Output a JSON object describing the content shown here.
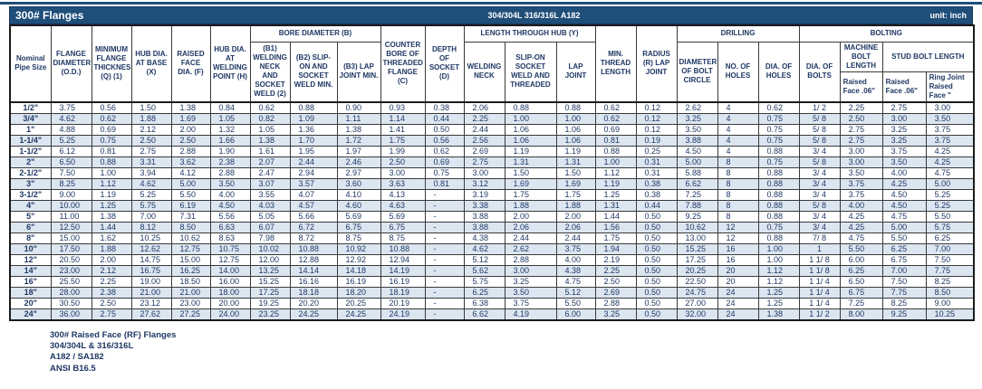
{
  "title_bar": {
    "title": "300# Flanges",
    "material": "304/304L 316/316L A182",
    "unit": "unit: inch"
  },
  "colors": {
    "bar_navy": "#1f4e79",
    "text_navy": "#1f3864",
    "row_shade_blue": "#dce6f1",
    "background": "#ffffff"
  },
  "table": {
    "header": {
      "nominal": "Nominal Pipe Size",
      "flange_diameter": "FLANGE DIAMETER (O.D.)",
      "min_thickness": "MINIMUM FLANGE THICKNESS (Q) (1)",
      "hub_base": "HUB DIA. AT BASE (X)",
      "raised_face": "RAISED FACE DIA. (F)",
      "hub_welding": "HUB DIA. AT WELDING POINT (H)",
      "bore_group": "BORE DIAMETER (B)",
      "b1": "(B1) WELDING NECK AND SOCKET WELD (2)",
      "b2": "(B2) SLIP-ON AND SOCKET WELD MIN.",
      "b3": "(B3) LAP JOINT MIN.",
      "counter_bore": "COUNTER BORE OF THREADED FLANGE (C)",
      "depth_socket": "DEPTH OF SOCKET (D)",
      "length_group": "LENGTH THROUGH HUB (Y)",
      "welding_neck": "WELDING NECK",
      "slip_on": "SLIP-ON SOCKET WELD AND THREADED",
      "lap_joint": "LAP JOINT",
      "min_thread": "MIN. THREAD LENGTH",
      "radius": "RADIUS (R) LAP JOINT",
      "drilling_group": "DRILLING",
      "bolt_circle": "DIAMETER OF BOLT CIRCLE",
      "no_holes": "NO. OF HOLES",
      "dia_holes": "DIA. OF HOLES",
      "bolting_group": "BOLTING",
      "dia_bolts": "DIA. OF BOLTS",
      "machine_bolt": "MACHINE BOLT LENGTH",
      "stud_bolt": "STUD BOLT LENGTH",
      "machine_raised": "Raised Face .06\"",
      "stud_raised": "Raised Face .06\"",
      "ring_joint": "Ring Joint Raised Face \""
    },
    "rows": [
      {
        "size": "1/2\"",
        "values": [
          "3.75",
          "0.56",
          "1.50",
          "1.38",
          "0.84",
          "0.62",
          "0.88",
          "0.90",
          "0.93",
          "0.38",
          "2.06",
          "0.88",
          "0.88",
          "0.62",
          "0.12",
          "2.62",
          "4",
          "0.62",
          "1/ 2",
          "2.25",
          "2.75",
          "3.00"
        ]
      },
      {
        "size": "3/4\"",
        "values": [
          "4.62",
          "0.62",
          "1.88",
          "1.69",
          "1.05",
          "0.82",
          "1.09",
          "1.11",
          "1.14",
          "0.44",
          "2.25",
          "1.00",
          "1.00",
          "0.62",
          "0.12",
          "3.25",
          "4",
          "0.75",
          "5/ 8",
          "2.50",
          "3.00",
          "3.50"
        ]
      },
      {
        "size": "1\"",
        "values": [
          "4.88",
          "0.69",
          "2.12",
          "2.00",
          "1.32",
          "1.05",
          "1.36",
          "1.38",
          "1.41",
          "0.50",
          "2.44",
          "1.06",
          "1.06",
          "0.69",
          "0.12",
          "3.50",
          "4",
          "0.75",
          "5/ 8",
          "2.75",
          "3.25",
          "3.75"
        ]
      },
      {
        "size": "1-1/4\"",
        "values": [
          "5.25",
          "0.75",
          "2.50",
          "2.50",
          "1.66",
          "1.38",
          "1.70",
          "1.72",
          "1.75",
          "0.56",
          "2.56",
          "1.06",
          "1.06",
          "0.81",
          "0.19",
          "3.88",
          "4",
          "0.75",
          "5/ 8",
          "2.75",
          "3.25",
          "3.75"
        ]
      },
      {
        "size": "1-1/2\"",
        "values": [
          "6.12",
          "0.81",
          "2.75",
          "2.88",
          "1.90",
          "1.61",
          "1.95",
          "1.97",
          "1.99",
          "0.62",
          "2.69",
          "1.19",
          "1.19",
          "0.88",
          "0.25",
          "4.50",
          "4",
          "0.88",
          "3/ 4",
          "3.00",
          "3.75",
          "4.25"
        ]
      },
      {
        "size": "2\"",
        "values": [
          "6.50",
          "0.88",
          "3.31",
          "3.62",
          "2.38",
          "2.07",
          "2.44",
          "2.46",
          "2.50",
          "0.69",
          "2.75",
          "1.31",
          "1.31",
          "1.00",
          "0.31",
          "5.00",
          "8",
          "0.75",
          "5/ 8",
          "3.00",
          "3.50",
          "4.25"
        ]
      },
      {
        "size": "2-1/2\"",
        "values": [
          "7.50",
          "1.00",
          "3.94",
          "4.12",
          "2.88",
          "2.47",
          "2.94",
          "2.97",
          "3.00",
          "0.75",
          "3.00",
          "1.50",
          "1.50",
          "1.12",
          "0.31",
          "5.88",
          "8",
          "0.88",
          "3/ 4",
          "3.50",
          "4.00",
          "4.75"
        ]
      },
      {
        "size": "3\"",
        "values": [
          "8.25",
          "1.12",
          "4.62",
          "5.00",
          "3.50",
          "3.07",
          "3.57",
          "3.60",
          "3.63",
          "0.81",
          "3.12",
          "1.69",
          "1.69",
          "1.19",
          "0.38",
          "6.62",
          "8",
          "0.88",
          "3/ 4",
          "3.75",
          "4.25",
          "5.00"
        ]
      },
      {
        "size": "3-1/2\"",
        "values": [
          "9.00",
          "1.19",
          "5.25",
          "5.50",
          "4.00",
          "3.55",
          "4.07",
          "4.10",
          "4.13",
          "-",
          "3.19",
          "1.75",
          "1.75",
          "1.25",
          "0.38",
          "7.25",
          "8",
          "0.88",
          "3/ 4",
          "3.75",
          "4.50",
          "5.25"
        ]
      },
      {
        "size": "4\"",
        "values": [
          "10.00",
          "1.25",
          "5.75",
          "6.19",
          "4.50",
          "4.03",
          "4.57",
          "4.60",
          "4.63",
          "-",
          "3.38",
          "1.88",
          "1.88",
          "1.31",
          "0.44",
          "7.88",
          "8",
          "0.88",
          "5/ 8",
          "4.00",
          "4.50",
          "5.25"
        ]
      },
      {
        "size": "5\"",
        "values": [
          "11.00",
          "1.38",
          "7.00",
          "7.31",
          "5.56",
          "5.05",
          "5.66",
          "5.69",
          "5.69",
          "-",
          "3.88",
          "2.00",
          "2.00",
          "1.44",
          "0.50",
          "9.25",
          "8",
          "0.88",
          "3/ 4",
          "4.25",
          "4.75",
          "5.50"
        ]
      },
      {
        "size": "6\"",
        "values": [
          "12.50",
          "1.44",
          "8.12",
          "8.50",
          "6.63",
          "6.07",
          "6.72",
          "6.75",
          "6.75",
          "-",
          "3.88",
          "2.06",
          "2.06",
          "1.56",
          "0.50",
          "10.62",
          "12",
          "0.75",
          "3/ 4",
          "4.25",
          "5.00",
          "5.75"
        ]
      },
      {
        "size": "8\"",
        "values": [
          "15.00",
          "1.62",
          "10.25",
          "10.62",
          "8.63",
          "7.98",
          "8.72",
          "8.75",
          "8.75",
          "-",
          "4.38",
          "2.44",
          "2.44",
          "1.75",
          "0.50",
          "13.00",
          "12",
          "0.88",
          "7/ 8",
          "4.75",
          "5.50",
          "6.25"
        ]
      },
      {
        "size": "10\"",
        "values": [
          "17.50",
          "1.88",
          "12.62",
          "12.75",
          "10.75",
          "10.02",
          "10.88",
          "10.92",
          "10.88",
          "-",
          "4.62",
          "2.62",
          "3.75",
          "1.94",
          "0.50",
          "15.25",
          "16",
          "1.00",
          "1",
          "5.50",
          "6.25",
          "7.00"
        ]
      },
      {
        "size": "12\"",
        "values": [
          "20.50",
          "2.00",
          "14.75",
          "15.00",
          "12.75",
          "12.00",
          "12.88",
          "12.92",
          "12.94",
          "-",
          "5.12",
          "2.88",
          "4.00",
          "2.19",
          "0.50",
          "17.25",
          "16",
          "1.00",
          "1 1/ 8",
          "6.00",
          "6.75",
          "7.50"
        ]
      },
      {
        "size": "14\"",
        "values": [
          "23.00",
          "2.12",
          "16.75",
          "16.25",
          "14.00",
          "13.25",
          "14.14",
          "14.18",
          "14.19",
          "-",
          "5.62",
          "3.00",
          "4.38",
          "2.25",
          "0.50",
          "20.25",
          "20",
          "1.12",
          "1 1/ 8",
          "6.25",
          "7.00",
          "7.75"
        ]
      },
      {
        "size": "16\"",
        "values": [
          "25.50",
          "2.25",
          "19.00",
          "18.50",
          "16.00",
          "15.25",
          "16.16",
          "16.19",
          "16.19",
          "-",
          "5.75",
          "3.25",
          "4.75",
          "2.50",
          "0.50",
          "22.50",
          "20",
          "1.12",
          "1 1/ 4",
          "6.50",
          "7.50",
          "8.25"
        ]
      },
      {
        "size": "18\"",
        "values": [
          "28.00",
          "2.38",
          "21.00",
          "21.00",
          "18.00",
          "17.25",
          "18.18",
          "18.20",
          "18.19",
          "-",
          "6.25",
          "3.50",
          "5.12",
          "2.69",
          "0.50",
          "24.75",
          "24",
          "1.25",
          "1 1/ 4",
          "6.75",
          "7.75",
          "8.50"
        ]
      },
      {
        "size": "20\"",
        "values": [
          "30.50",
          "2.50",
          "23.12",
          "23.00",
          "20.00",
          "19.25",
          "20.20",
          "20.25",
          "20.19",
          "-",
          "6.38",
          "3.75",
          "5.50",
          "2.88",
          "0.50",
          "27.00",
          "24",
          "1.25",
          "1 1/ 4",
          "7.25",
          "8.25",
          "9.00"
        ]
      },
      {
        "size": "24\"",
        "values": [
          "36.00",
          "2.75",
          "27.62",
          "27.25",
          "24.00",
          "23.25",
          "24.25",
          "24.25",
          "24.19",
          "-",
          "6.62",
          "4.19",
          "6.00",
          "3.25",
          "0.50",
          "32.00",
          "24",
          "1.38",
          "1 1/ 2",
          "8.00",
          "9.25",
          "10.25"
        ]
      }
    ]
  },
  "footnotes": [
    "300# Raised Face (RF) Flanges",
    "304/304L & 316/316L",
    "A182 / SA182",
    "ANSI B16.5"
  ]
}
